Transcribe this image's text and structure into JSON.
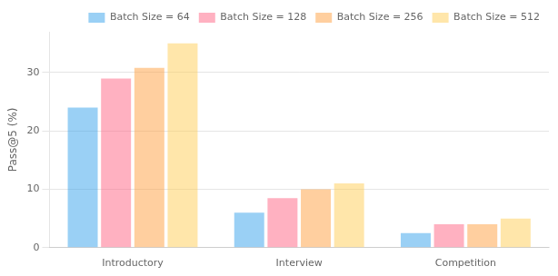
{
  "chart_data": {
    "type": "bar",
    "categories": [
      "Introductory",
      "Interview",
      "Competition"
    ],
    "series": [
      {
        "name": "Batch Size = 64",
        "values": [
          24.0,
          6.0,
          2.5
        ]
      },
      {
        "name": "Batch Size = 128",
        "values": [
          29.0,
          8.5,
          4.0
        ]
      },
      {
        "name": "Batch Size = 256",
        "values": [
          30.8,
          10.0,
          4.0
        ]
      },
      {
        "name": "Batch Size = 512",
        "values": [
          35.0,
          11.0,
          5.0
        ]
      }
    ],
    "ylabel": "Pass@5 (%)",
    "ylim": [
      0,
      37
    ],
    "yticks": [
      0,
      10,
      20,
      30
    ],
    "grid": true,
    "legend": "upper right"
  }
}
